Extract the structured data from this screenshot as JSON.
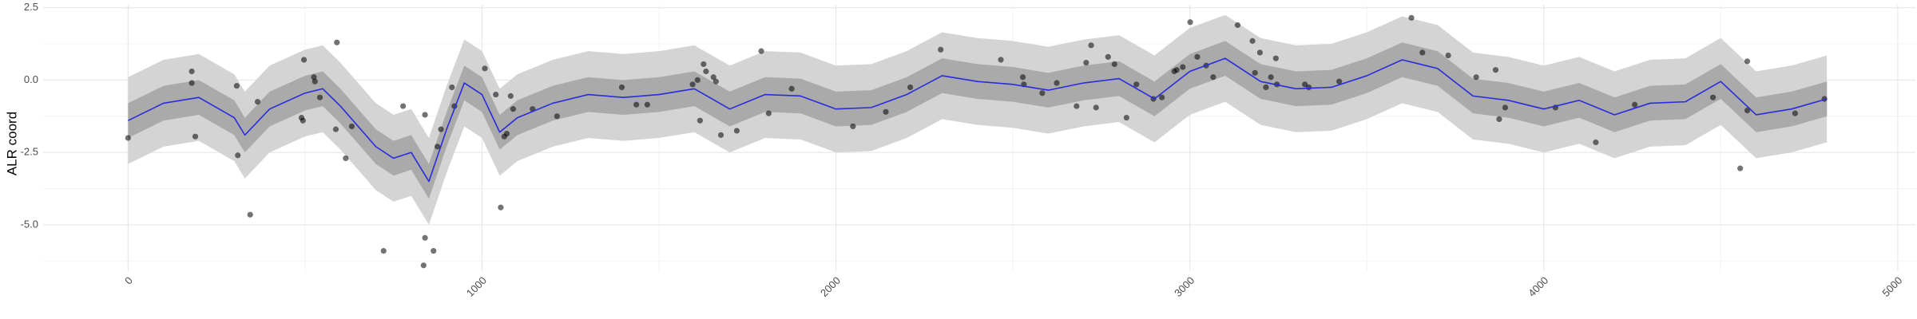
{
  "chart_data": {
    "type": "line",
    "y_label": "ALR coord",
    "xlim": [
      -240,
      5050
    ],
    "ylim": [
      -6.6,
      2.6
    ],
    "xticks": [
      0,
      1000,
      2000,
      3000,
      4000,
      5000
    ],
    "yticks": [
      {
        "value": 2.5,
        "label": "2.5"
      },
      {
        "value": 0,
        "label": "0.0"
      },
      {
        "value": -2.5,
        "label": "-2.5"
      },
      {
        "value": -5,
        "label": "-5.0"
      }
    ],
    "grid": true,
    "x": [
      0,
      100,
      200,
      300,
      330,
      400,
      500,
      550,
      600,
      700,
      750,
      800,
      850,
      900,
      950,
      1000,
      1050,
      1100,
      1200,
      1300,
      1400,
      1500,
      1600,
      1700,
      1800,
      1900,
      2000,
      2100,
      2200,
      2300,
      2400,
      2500,
      2600,
      2700,
      2800,
      2900,
      3000,
      3100,
      3200,
      3300,
      3400,
      3500,
      3600,
      3700,
      3800,
      3900,
      4000,
      4100,
      4200,
      4300,
      4400,
      4500,
      4600,
      4700,
      4800
    ],
    "line": {
      "color": "#2b2bdc",
      "values": [
        -1.4,
        -0.8,
        -0.6,
        -1.3,
        -1.9,
        -1.0,
        -0.45,
        -0.3,
        -0.9,
        -2.3,
        -2.7,
        -2.5,
        -3.5,
        -1.7,
        -0.1,
        -0.5,
        -1.8,
        -1.3,
        -0.8,
        -0.5,
        -0.6,
        -0.5,
        -0.3,
        -1.0,
        -0.5,
        -0.55,
        -1.0,
        -0.95,
        -0.5,
        0.15,
        -0.05,
        -0.15,
        -0.35,
        -0.1,
        0.05,
        -0.65,
        0.3,
        0.75,
        -0.05,
        -0.3,
        -0.25,
        0.15,
        0.7,
        0.4,
        -0.55,
        -0.7,
        -1.0,
        -0.7,
        -1.2,
        -0.8,
        -0.75,
        -0.05,
        -1.2,
        -1.0,
        -0.65
      ]
    },
    "bands": [
      {
        "color": "#d4d4d4",
        "lower": [
          -2.9,
          -2.3,
          -2.1,
          -2.8,
          -3.4,
          -2.5,
          -1.95,
          -1.8,
          -2.4,
          -3.8,
          -4.2,
          -4.0,
          -5.0,
          -3.2,
          -1.6,
          -2.0,
          -3.3,
          -2.8,
          -2.3,
          -2.0,
          -2.1,
          -2.0,
          -1.8,
          -2.5,
          -2.0,
          -2.05,
          -2.5,
          -2.45,
          -2.0,
          -1.35,
          -1.55,
          -1.65,
          -1.85,
          -1.6,
          -1.45,
          -2.15,
          -1.2,
          -0.75,
          -1.55,
          -1.8,
          -1.75,
          -1.35,
          -0.8,
          -1.1,
          -2.05,
          -2.2,
          -2.5,
          -2.2,
          -2.7,
          -2.3,
          -2.25,
          -1.55,
          -2.7,
          -2.5,
          -2.15
        ],
        "upper": [
          0.1,
          0.7,
          0.9,
          0.2,
          -0.4,
          0.5,
          1.05,
          1.2,
          0.6,
          -0.8,
          -1.2,
          -1.0,
          -2.0,
          -0.2,
          1.4,
          1.0,
          -0.3,
          0.2,
          0.7,
          1.0,
          0.9,
          1.0,
          1.2,
          0.5,
          1.0,
          0.95,
          0.5,
          0.55,
          1.0,
          1.65,
          1.45,
          1.35,
          1.15,
          1.4,
          1.55,
          0.85,
          1.8,
          2.25,
          1.45,
          1.2,
          1.25,
          1.65,
          2.2,
          1.9,
          0.95,
          0.8,
          0.5,
          0.8,
          0.3,
          0.7,
          0.75,
          1.45,
          0.3,
          0.5,
          0.85
        ]
      },
      {
        "color": "#aaaaaa",
        "lower": [
          -2.0,
          -1.4,
          -1.2,
          -1.9,
          -2.5,
          -1.6,
          -1.05,
          -0.9,
          -1.5,
          -2.9,
          -3.3,
          -3.1,
          -4.1,
          -2.3,
          -0.7,
          -1.1,
          -2.4,
          -1.9,
          -1.4,
          -1.1,
          -1.2,
          -1.1,
          -0.9,
          -1.6,
          -1.1,
          -1.15,
          -1.6,
          -1.55,
          -1.1,
          -0.45,
          -0.65,
          -0.75,
          -0.95,
          -0.7,
          -0.55,
          -1.25,
          -0.3,
          0.15,
          -0.65,
          -0.9,
          -0.85,
          -0.45,
          0.1,
          -0.2,
          -1.15,
          -1.3,
          -1.6,
          -1.3,
          -1.8,
          -1.4,
          -1.35,
          -0.65,
          -1.8,
          -1.6,
          -1.25
        ],
        "upper": [
          -0.8,
          -0.2,
          0.0,
          -0.7,
          -1.3,
          -0.4,
          0.15,
          0.3,
          -0.3,
          -1.7,
          -2.1,
          -1.9,
          -2.9,
          -1.1,
          0.5,
          0.1,
          -1.2,
          -0.7,
          -0.2,
          0.1,
          0.0,
          0.1,
          0.3,
          -0.4,
          0.1,
          0.05,
          -0.4,
          -0.35,
          0.1,
          0.75,
          0.55,
          0.45,
          0.25,
          0.5,
          0.65,
          -0.05,
          0.9,
          1.35,
          0.55,
          0.3,
          0.35,
          0.75,
          1.3,
          1.0,
          0.05,
          -0.1,
          -0.4,
          -0.1,
          -0.6,
          -0.2,
          -0.15,
          0.55,
          -0.6,
          -0.4,
          -0.05
        ]
      }
    ],
    "points": {
      "color": "#000000",
      "opacity": 0.55,
      "x": [
        0,
        180,
        180,
        190,
        307,
        310,
        345,
        366,
        497,
        490,
        494,
        525,
        528,
        542,
        590,
        587,
        615,
        632,
        722,
        777,
        835,
        839,
        839,
        863,
        874,
        884,
        915,
        922,
        1008,
        1039,
        1053,
        1063,
        1070,
        1081,
        1088,
        1143,
        1212,
        1395,
        1436,
        1467,
        1595,
        1609,
        1616,
        1626,
        1633,
        1654,
        1661,
        1675,
        1720,
        1789,
        1810,
        1875,
        2048,
        2141,
        2210,
        2296,
        2466,
        2528,
        2531,
        2583,
        2624,
        2680,
        2707,
        2721,
        2735,
        2769,
        2787,
        2821,
        2849,
        2897,
        2921,
        2956,
        2963,
        2980,
        3001,
        3021,
        3046,
        3066,
        3135,
        3177,
        3198,
        3184,
        3215,
        3229,
        3246,
        3243,
        3325,
        3336,
        3422,
        3626,
        3657,
        3730,
        3809,
        3864,
        3874,
        3891,
        4033,
        4147,
        4257,
        4478,
        4575,
        4555,
        4575,
        4710,
        4793
      ],
      "y": [
        -2.0,
        0.3,
        -0.1,
        -1.95,
        -0.2,
        -2.6,
        -4.65,
        -0.75,
        0.7,
        -1.3,
        -1.4,
        0.1,
        -0.05,
        -0.6,
        1.3,
        -1.7,
        -2.7,
        -1.6,
        -5.9,
        -0.9,
        -6.4,
        -1.2,
        -5.45,
        -5.9,
        -2.3,
        -1.7,
        -0.25,
        -0.9,
        0.4,
        -0.5,
        -4.4,
        -1.95,
        -1.85,
        -0.55,
        -1.0,
        -1.0,
        -1.25,
        -0.25,
        -0.85,
        -0.85,
        -0.15,
        0.0,
        -1.4,
        0.55,
        0.3,
        0.1,
        -0.05,
        -1.9,
        -1.75,
        1.0,
        -1.15,
        -0.3,
        -1.6,
        -1.1,
        -0.25,
        1.05,
        0.7,
        0.1,
        -0.15,
        -0.45,
        -0.1,
        -0.9,
        0.6,
        1.2,
        -0.95,
        0.8,
        0.55,
        -1.3,
        -0.15,
        -0.65,
        -0.6,
        0.3,
        0.35,
        0.45,
        2.0,
        0.8,
        0.5,
        0.1,
        1.9,
        1.35,
        0.95,
        0.25,
        -0.25,
        0.1,
        -0.15,
        0.75,
        -0.15,
        -0.25,
        -0.05,
        2.15,
        0.95,
        0.85,
        0.1,
        0.35,
        -1.35,
        -0.95,
        -0.95,
        -2.15,
        -0.85,
        -0.6,
        0.65,
        -3.05,
        -1.05,
        -1.15,
        -0.65
      ]
    }
  }
}
